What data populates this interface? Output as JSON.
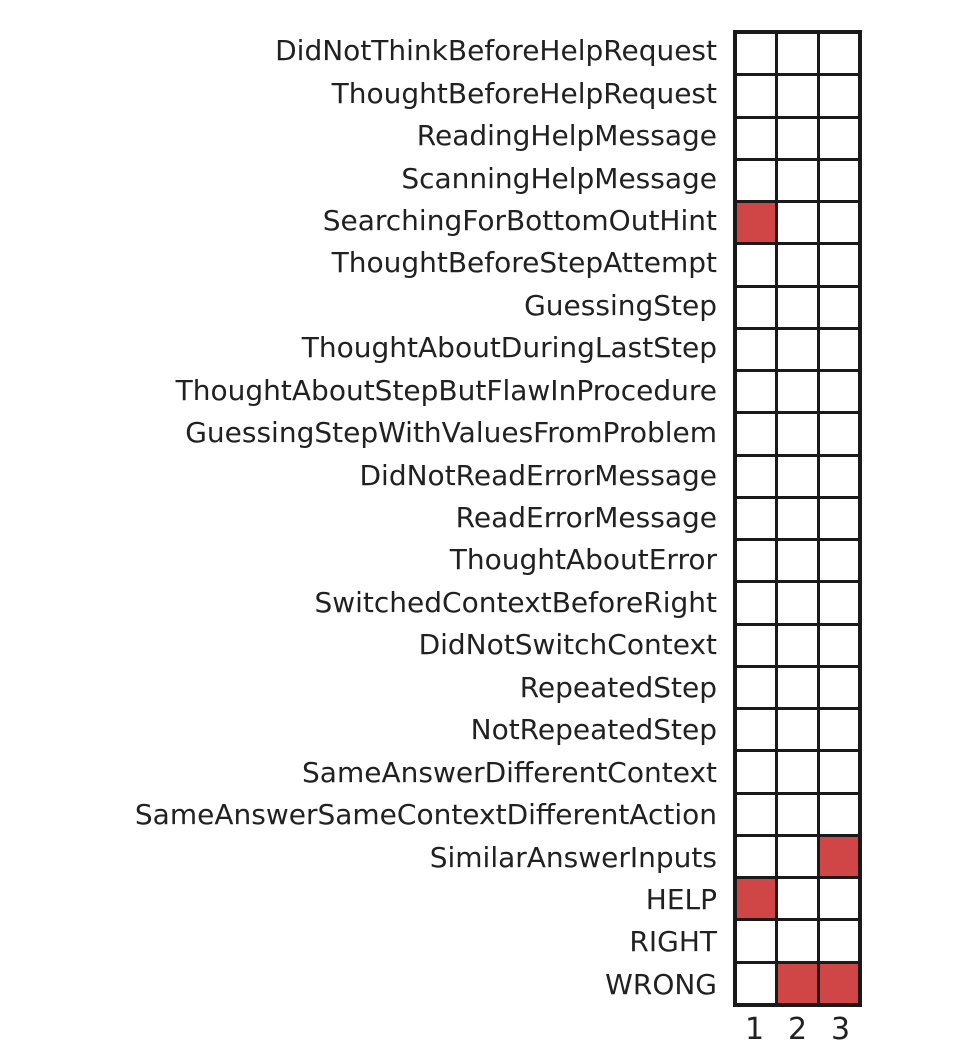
{
  "chart_data": {
    "type": "heatmap",
    "categories": [
      "DidNotThinkBeforeHelpRequest",
      "ThoughtBeforeHelpRequest",
      "ReadingHelpMessage",
      "ScanningHelpMessage",
      "SearchingForBottomOutHint",
      "ThoughtBeforeStepAttempt",
      "GuessingStep",
      "ThoughtAboutDuringLastStep",
      "ThoughtAboutStepButFlawInProcedure",
      "GuessingStepWithValuesFromProblem",
      "DidNotReadErrorMessage",
      "ReadErrorMessage",
      "ThoughtAboutError",
      "SwitchedContextBeforeRight",
      "DidNotSwitchContext",
      "RepeatedStep",
      "NotRepeatedStep",
      "SameAnswerDifferentContext",
      "SameAnswerSameContextDifferentAction",
      "SimilarAnswerInputs",
      "HELP",
      "RIGHT",
      "WRONG"
    ],
    "x_tick_labels": [
      "1",
      "2",
      "3"
    ],
    "matrix": [
      [
        0,
        0,
        0
      ],
      [
        0,
        0,
        0
      ],
      [
        0,
        0,
        0
      ],
      [
        0,
        0,
        0
      ],
      [
        1,
        0,
        0
      ],
      [
        0,
        0,
        0
      ],
      [
        0,
        0,
        0
      ],
      [
        0,
        0,
        0
      ],
      [
        0,
        0,
        0
      ],
      [
        0,
        0,
        0
      ],
      [
        0,
        0,
        0
      ],
      [
        0,
        0,
        0
      ],
      [
        0,
        0,
        0
      ],
      [
        0,
        0,
        0
      ],
      [
        0,
        0,
        0
      ],
      [
        0,
        0,
        0
      ],
      [
        0,
        0,
        0
      ],
      [
        0,
        0,
        0
      ],
      [
        0,
        0,
        0
      ],
      [
        0,
        0,
        1
      ],
      [
        1,
        0,
        0
      ],
      [
        0,
        0,
        0
      ],
      [
        0,
        1,
        1
      ]
    ],
    "filled_cells": [
      {
        "row": "SearchingForBottomOutHint",
        "col": 1
      },
      {
        "row": "SimilarAnswerInputs",
        "col": 3
      },
      {
        "row": "HELP",
        "col": 1
      },
      {
        "row": "WRONG",
        "col": 2
      },
      {
        "row": "WRONG",
        "col": 3
      }
    ],
    "colors": {
      "filled": "#d04646",
      "empty": "#ffffff",
      "grid_line": "#1a1a1a",
      "label_text": "#212121"
    },
    "layout": {
      "rows": 23,
      "columns": 3,
      "grid_on": true,
      "legend": "none",
      "value_domain": [
        0,
        1
      ]
    }
  }
}
